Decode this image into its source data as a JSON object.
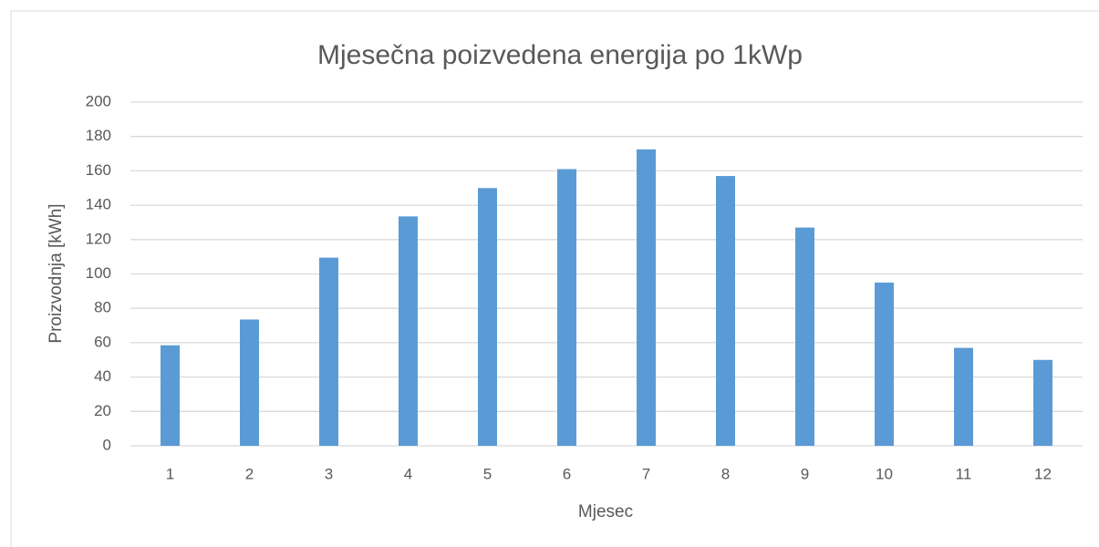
{
  "chart_data": {
    "type": "bar",
    "title": "Mjesečna poizvedena energija po 1kWp",
    "x_label": "Mjesec",
    "y_label": "Proizvodnja [kWh]",
    "categories": [
      "1",
      "2",
      "3",
      "4",
      "5",
      "6",
      "7",
      "8",
      "9",
      "10",
      "11",
      "12"
    ],
    "values": [
      58.5,
      73.5,
      109.5,
      133.5,
      150,
      161,
      172.5,
      157,
      127,
      95,
      57,
      50
    ],
    "color": "#5b9bd5",
    "ylim": [
      0,
      200
    ],
    "yticks": [
      0,
      20,
      40,
      60,
      80,
      100,
      120,
      140,
      160,
      180,
      200
    ],
    "grid": true
  }
}
